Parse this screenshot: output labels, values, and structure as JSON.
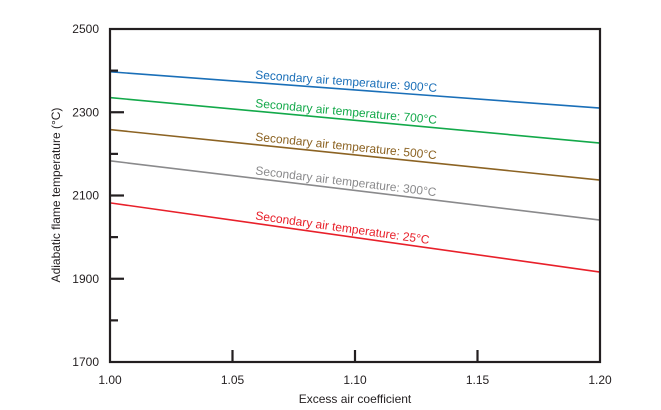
{
  "chart_data": {
    "type": "line",
    "title": "",
    "xlabel": "Excess air coefficient",
    "ylabel": "Adiabatic flame temperature (°C)",
    "xlim": [
      1.0,
      1.2
    ],
    "ylim": [
      1700,
      2500
    ],
    "x_ticks": [
      "1.00",
      "1.05",
      "1.10",
      "1.15",
      "1.20"
    ],
    "x_tick_values": [
      1.0,
      1.05,
      1.1,
      1.15,
      1.2
    ],
    "y_ticks": [
      "1700",
      "1900",
      "2100",
      "2300",
      "2500"
    ],
    "y_tick_values": [
      1700,
      1900,
      2100,
      2300,
      2500
    ],
    "y_minor_ticks": [
      1800,
      2000,
      2200,
      2400
    ],
    "grid": false,
    "legend": "inline labels above each line",
    "series": [
      {
        "name": "Secondary air temperature: 900°C",
        "color": "#1a6fb8",
        "x": [
          1.0,
          1.2
        ],
        "y": [
          2397,
          2310
        ]
      },
      {
        "name": "Secondary air temperature: 700°C",
        "color": "#13a94a",
        "x": [
          1.0,
          1.2
        ],
        "y": [
          2335,
          2226
        ]
      },
      {
        "name": "Secondary air temperature: 500°C",
        "color": "#8c6323",
        "x": [
          1.0,
          1.2
        ],
        "y": [
          2258,
          2137
        ]
      },
      {
        "name": "Secondary air temperature: 300°C",
        "color": "#8a8a8c",
        "x": [
          1.0,
          1.2
        ],
        "y": [
          2183,
          2041
        ]
      },
      {
        "name": "Secondary air temperature: 25°C",
        "color": "#e8202a",
        "x": [
          1.0,
          1.2
        ],
        "y": [
          2082,
          1916
        ]
      }
    ]
  }
}
